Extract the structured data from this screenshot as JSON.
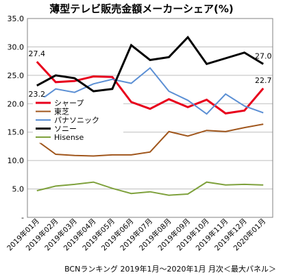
{
  "chart_data": {
    "type": "line",
    "title": "薄型テレビ販売金額メーカーシェア(%)",
    "categories": [
      "2019年01月",
      "2019年02月",
      "2019年03月",
      "2019年04月",
      "2019年05月",
      "2019年06月",
      "2019年07月",
      "2019年08月",
      "2019年09月",
      "2019年10月",
      "2019年11月",
      "2019年12月",
      "2020年01月"
    ],
    "ylim": [
      0,
      35
    ],
    "yticks": [
      "-",
      "5.0",
      "10.0",
      "15.0",
      "20.0",
      "25.0",
      "30.0",
      "35.0"
    ],
    "grid": true,
    "legend_position": "center-left",
    "series": [
      {
        "name": "シャープ",
        "color": "#e8001c",
        "width": 3,
        "values": [
          27.4,
          23.8,
          24.0,
          24.8,
          24.7,
          20.3,
          19.1,
          20.8,
          19.4,
          20.7,
          18.3,
          18.8,
          22.7
        ]
      },
      {
        "name": "東芝",
        "color": "#a0561c",
        "width": 2,
        "values": [
          13.5,
          11.1,
          10.9,
          10.8,
          11.0,
          11.0,
          11.5,
          15.1,
          14.3,
          15.3,
          15.1,
          15.8,
          16.4
        ]
      },
      {
        "name": "パナソニック",
        "color": "#5b8fd4",
        "width": 2,
        "values": [
          20.2,
          22.6,
          22.0,
          23.5,
          24.3,
          23.6,
          26.3,
          22.2,
          20.6,
          18.2,
          21.7,
          19.6,
          18.4
        ]
      },
      {
        "name": "ソニー",
        "color": "#000000",
        "width": 3,
        "values": [
          23.2,
          25.0,
          24.5,
          22.2,
          22.6,
          30.3,
          27.7,
          28.2,
          31.7,
          27.0,
          28.0,
          29.0,
          27.0
        ]
      },
      {
        "name": "Hisense",
        "color": "#7ea13c",
        "width": 2,
        "values": [
          4.7,
          5.5,
          5.8,
          6.2,
          5.1,
          4.2,
          4.5,
          3.9,
          4.1,
          6.2,
          5.7,
          5.8,
          5.7
        ]
      }
    ],
    "annotations": [
      {
        "series": 0,
        "index": 0,
        "text": "27.4"
      },
      {
        "series": 3,
        "index": 0,
        "text": "23.2"
      },
      {
        "series": 3,
        "index": 12,
        "text": "27.0"
      },
      {
        "series": 0,
        "index": 12,
        "text": "22.7"
      }
    ]
  },
  "source_note": "BCNランキング 2019年1月～2020年1月 月次＜最大パネル＞"
}
